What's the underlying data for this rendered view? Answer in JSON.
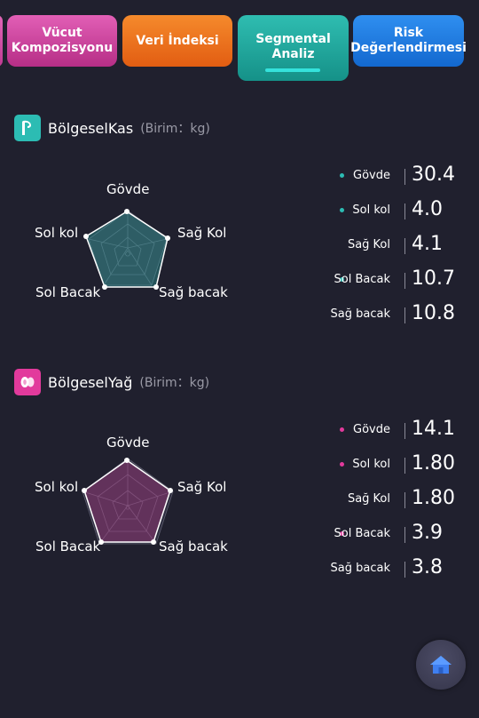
{
  "tabs": [
    {
      "label": "Vücut\nKompozisyonu"
    },
    {
      "label": "Veri İndeksi"
    },
    {
      "label": "Segmental Analiz"
    },
    {
      "label": "Risk\nDeğerlendirmesi"
    }
  ],
  "active_tab": "Segmental Analiz",
  "muscle": {
    "title": "BölgeselKas",
    "unit": "(Birim：kg)",
    "accent": "#2cbcb3",
    "radar_labels": [
      "Gövde",
      "Sağ Kol",
      "Sağ bacak",
      "Sol Bacak",
      "Sol kol"
    ],
    "rows": [
      {
        "label": "Gövde",
        "value": "30.4",
        "dot": true
      },
      {
        "label": "Sol kol",
        "value": "4.0",
        "dot": true
      },
      {
        "label": "Sağ Kol",
        "value": "4.1",
        "dot": false
      },
      {
        "label": "Sol Bacak",
        "value": "10.7",
        "dot": true
      },
      {
        "label": "Sağ bacak",
        "value": "10.8",
        "dot": false
      }
    ]
  },
  "fat": {
    "title": "BölgeselYağ",
    "unit": "(Birim：kg)",
    "accent": "#e23a9c",
    "radar_labels": [
      "Gövde",
      "Sağ Kol",
      "Sağ bacak",
      "Sol Bacak",
      "Sol kol"
    ],
    "rows": [
      {
        "label": "Gövde",
        "value": "14.1",
        "dot": true
      },
      {
        "label": "Sol kol",
        "value": "1.80",
        "dot": true
      },
      {
        "label": "Sağ Kol",
        "value": "1.80",
        "dot": false
      },
      {
        "label": "Sol Bacak",
        "value": "3.9",
        "dot": true
      },
      {
        "label": "Sağ bacak",
        "value": "3.8",
        "dot": false
      }
    ]
  },
  "icons": {
    "muscle": "arm-muscle-icon",
    "fat": "fat-drop-icon",
    "home": "home-icon"
  }
}
